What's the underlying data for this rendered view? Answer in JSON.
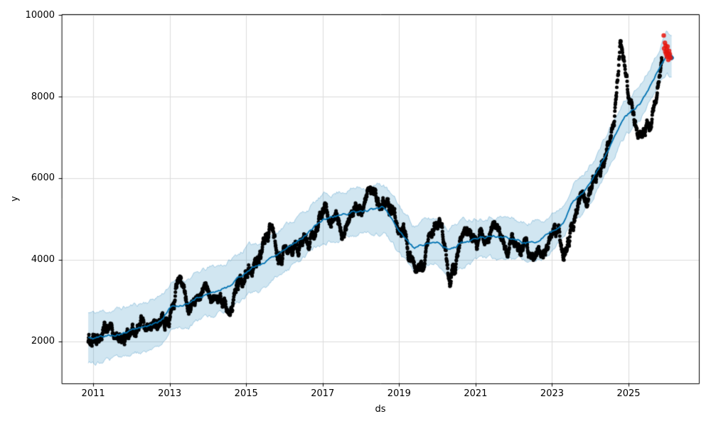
{
  "chart_data": {
    "type": "scatter+line+area",
    "title": "",
    "xlabel": "ds",
    "ylabel": "y",
    "grid": true,
    "legend": "none",
    "xlim": [
      2010.18,
      2026.84
    ],
    "ylim": [
      970,
      10020
    ],
    "x_tick_values": [
      2011,
      2013,
      2015,
      2017,
      2019,
      2021,
      2023,
      2025
    ],
    "x_tick_labels": [
      "2011",
      "2013",
      "2015",
      "2017",
      "2019",
      "2021",
      "2023",
      "2025"
    ],
    "y_tick_values": [
      2000,
      4000,
      6000,
      8000,
      10000
    ],
    "y_tick_labels": [
      "2000",
      "4000",
      "6000",
      "8000",
      "10000"
    ],
    "colors": {
      "forecast_line": "#0072B2",
      "band_fill": "rgba(0,114,178,0.18)",
      "band_edge": "rgba(0,114,178,0.30)",
      "actual_dots": "#000000",
      "recent_dots": "#e8150d",
      "grid": "#dcdcdc",
      "spine": "#000000",
      "background": "#ffffff"
    },
    "series": {
      "actuals_black_dots": {
        "name": "historical actuals (black scatter, ~daily)",
        "x_range": [
          2010.87,
          2025.88
        ],
        "backbone_x": [
          2010.87,
          2011.0,
          2011.08,
          2011.2,
          2011.35,
          2011.5,
          2011.65,
          2011.8,
          2011.95,
          2012.1,
          2012.25,
          2012.4,
          2012.55,
          2012.7,
          2012.85,
          2013.0,
          2013.12,
          2013.22,
          2013.3,
          2013.42,
          2013.55,
          2013.7,
          2013.85,
          2014.0,
          2014.15,
          2014.3,
          2014.45,
          2014.58,
          2014.72,
          2014.86,
          2015.0,
          2015.12,
          2015.25,
          2015.4,
          2015.55,
          2015.65,
          2015.78,
          2015.9,
          2016.05,
          2016.2,
          2016.38,
          2016.55,
          2016.72,
          2016.88,
          2017.0,
          2017.08,
          2017.2,
          2017.35,
          2017.5,
          2017.62,
          2017.78,
          2017.92,
          2018.05,
          2018.2,
          2018.35,
          2018.5,
          2018.62,
          2018.75,
          2018.9,
          2019.05,
          2019.2,
          2019.35,
          2019.5,
          2019.65,
          2019.8,
          2019.95,
          2020.1,
          2020.22,
          2020.33,
          2020.45,
          2020.6,
          2020.75,
          2020.9,
          2021.05,
          2021.2,
          2021.35,
          2021.5,
          2021.65,
          2021.8,
          2021.95,
          2022.1,
          2022.25,
          2022.4,
          2022.55,
          2022.7,
          2022.85,
          2023.0,
          2023.15,
          2023.3,
          2023.45,
          2023.6,
          2023.75,
          2023.9,
          2024.05,
          2024.2,
          2024.35,
          2024.5,
          2024.62,
          2024.72,
          2024.78,
          2024.84,
          2024.95,
          2025.05,
          2025.15,
          2025.27,
          2025.38,
          2025.48,
          2025.58,
          2025.68,
          2025.78,
          2025.88
        ],
        "backbone_y": [
          2060,
          2000,
          1880,
          2130,
          2230,
          2150,
          2080,
          2150,
          2230,
          2300,
          2340,
          2270,
          2360,
          2440,
          2520,
          2650,
          2950,
          3480,
          3350,
          3050,
          2950,
          3080,
          3180,
          3220,
          3330,
          3230,
          3050,
          2960,
          3220,
          3550,
          3900,
          3880,
          4000,
          4250,
          4600,
          4620,
          4200,
          3950,
          4050,
          4200,
          4300,
          4480,
          4560,
          4700,
          5250,
          5450,
          5150,
          5000,
          4680,
          4700,
          5050,
          5250,
          5150,
          5450,
          5550,
          5250,
          5500,
          5350,
          5050,
          4800,
          4450,
          3950,
          3800,
          3950,
          4350,
          4750,
          4800,
          4300,
          3500,
          3800,
          4350,
          4650,
          4550,
          4400,
          4600,
          4450,
          4650,
          4600,
          4350,
          4500,
          4250,
          4350,
          4100,
          3900,
          4150,
          4400,
          4500,
          4600,
          4150,
          4450,
          5150,
          5500,
          5600,
          5900,
          6250,
          6350,
          6800,
          7300,
          8400,
          9250,
          8950,
          8300,
          7800,
          7250,
          6850,
          7150,
          7250,
          7450,
          7850,
          8450,
          8950
        ]
      },
      "forecast_line": {
        "name": "forecast yhat (blue line)",
        "x": [
          2010.87,
          2011.0,
          2011.3,
          2011.6,
          2012.0,
          2012.5,
          2012.8,
          2013.0,
          2013.5,
          2014.0,
          2014.5,
          2015.0,
          2015.5,
          2016.0,
          2016.5,
          2017.0,
          2017.5,
          2018.0,
          2018.6,
          2019.0,
          2019.4,
          2019.7,
          2020.0,
          2020.3,
          2020.6,
          2021.0,
          2021.5,
          2022.0,
          2022.3,
          2022.6,
          2023.0,
          2023.3,
          2023.55,
          2023.8,
          2024.0,
          2024.3,
          2024.6,
          2024.9,
          2025.1,
          2025.3,
          2025.6,
          2025.85,
          2026.0,
          2026.08
        ],
        "y": [
          2080,
          2070,
          2120,
          2170,
          2260,
          2400,
          2550,
          2790,
          2960,
          3180,
          3330,
          3720,
          3950,
          4280,
          4590,
          4990,
          5110,
          5200,
          5270,
          4740,
          4280,
          4420,
          4460,
          4240,
          4420,
          4500,
          4560,
          4510,
          4410,
          4500,
          4660,
          4920,
          5440,
          5600,
          5880,
          6380,
          6940,
          7440,
          7630,
          7840,
          8340,
          8820,
          9060,
          9000
        ]
      },
      "uncertainty_band": {
        "name": "uncertainty interval (light blue band around yhat)",
        "x_range": [
          2010.87,
          2026.13
        ],
        "halfwidth_x": [
          2010.87,
          2012.0,
          2014.0,
          2016.0,
          2018.0,
          2019.5,
          2021.0,
          2022.5,
          2023.5,
          2024.5,
          2025.3,
          2025.9,
          2026.13
        ],
        "halfwidth": [
          620,
          610,
          600,
          560,
          580,
          560,
          540,
          465,
          440,
          430,
          440,
          480,
          570
        ]
      },
      "recent_actuals_red_dots": {
        "name": "recent/holdout actuals (red scatter)",
        "x": [
          2025.92,
          2025.95,
          2025.93,
          2025.97,
          2025.96,
          2025.98,
          2026.0,
          2026.0,
          2026.02,
          2026.02,
          2026.04,
          2026.05,
          2026.06,
          2026.08,
          2026.1
        ],
        "y": [
          9500,
          9320,
          9180,
          9250,
          9100,
          9050,
          8980,
          9150,
          9230,
          9060,
          8900,
          8980,
          9120,
          9040,
          8950
        ]
      },
      "forecast_end_marker": {
        "name": "thick blue end-of-forecast mark",
        "x": [
          2026.0,
          2026.13
        ],
        "y": [
          9090,
          8950
        ]
      }
    }
  }
}
